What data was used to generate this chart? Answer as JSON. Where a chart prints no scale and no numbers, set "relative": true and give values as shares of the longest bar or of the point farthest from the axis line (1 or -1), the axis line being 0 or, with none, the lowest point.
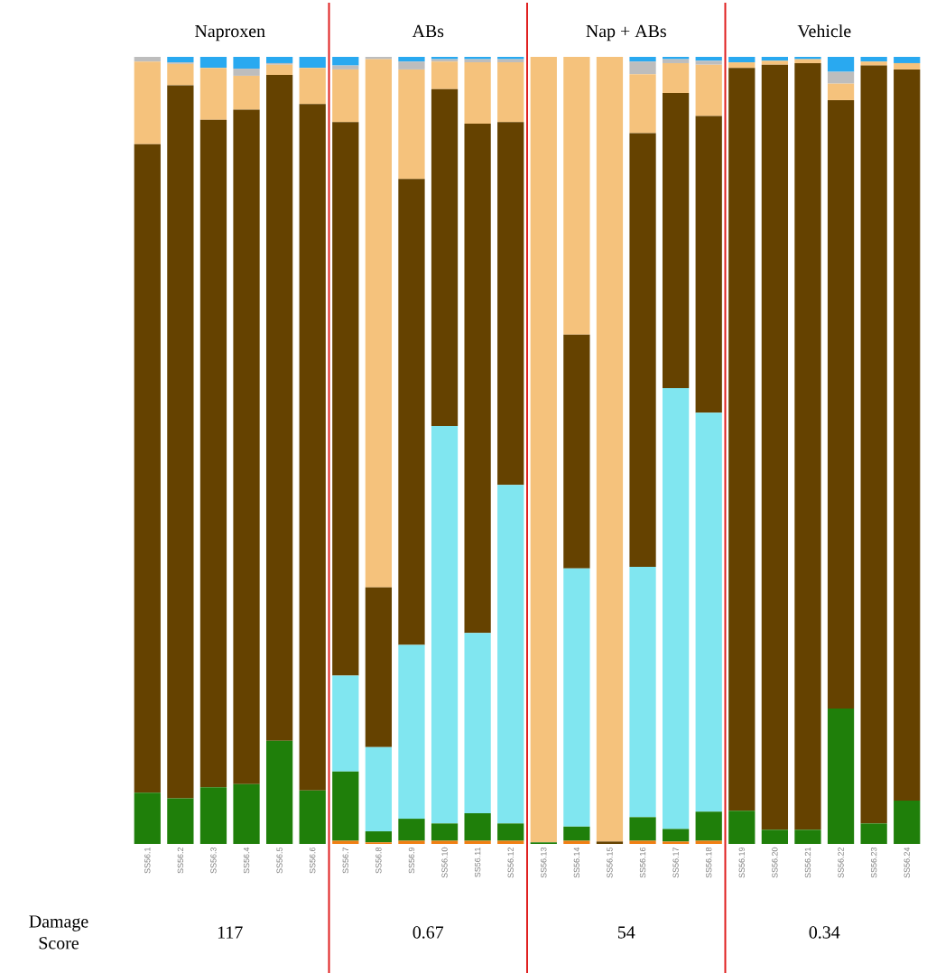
{
  "chart_data": {
    "type": "bar",
    "stacked": true,
    "relative": true,
    "categories": [
      "SS56.1",
      "SS56.2",
      "SS56.3",
      "SS56.4",
      "SS56.5",
      "SS56.6",
      "SS56.7",
      "SS56.8",
      "SS56.9",
      "SS56.10",
      "SS56.11",
      "SS56.12",
      "SS56.13",
      "SS56.14",
      "SS56.15",
      "SS56.16",
      "SS56.17",
      "SS56.18",
      "SS56.19",
      "SS56.20",
      "SS56.21",
      "SS56.22",
      "SS56.23",
      "SS56.24"
    ],
    "series": [
      {
        "color": "#f07f13",
        "values": [
          0,
          0,
          0,
          0,
          0,
          0,
          0.004,
          0.002,
          0.004,
          0.004,
          0.004,
          0.004,
          0,
          0.004,
          0,
          0.004,
          0.003,
          0.004,
          0,
          0,
          0,
          0,
          0,
          0
        ]
      },
      {
        "color": "#1f7f0a",
        "values": [
          0.065,
          0.058,
          0.072,
          0.076,
          0.131,
          0.068,
          0.088,
          0.014,
          0.028,
          0.022,
          0.035,
          0.022,
          0.002,
          0.018,
          0,
          0.03,
          0.016,
          0.037,
          0.042,
          0.018,
          0.018,
          0.172,
          0.026,
          0.055
        ]
      },
      {
        "color": "#80e6f0",
        "values": [
          0,
          0,
          0,
          0,
          0,
          0,
          0.122,
          0.107,
          0.221,
          0.505,
          0.229,
          0.43,
          0,
          0.328,
          0,
          0.318,
          0.56,
          0.507,
          0,
          0,
          0,
          0,
          0,
          0
        ]
      },
      {
        "color": "#654200",
        "values": [
          0.824,
          0.906,
          0.848,
          0.857,
          0.846,
          0.872,
          0.703,
          0.203,
          0.592,
          0.428,
          0.647,
          0.461,
          0,
          0.297,
          0.003,
          0.551,
          0.375,
          0.377,
          0.944,
          0.972,
          0.974,
          0.773,
          0.963,
          0.929
        ]
      },
      {
        "color": "#f5c27c",
        "values": [
          0.105,
          0.027,
          0.066,
          0.043,
          0.013,
          0.046,
          0.067,
          0.671,
          0.139,
          0.035,
          0.078,
          0.076,
          0.998,
          0.353,
          0.997,
          0.075,
          0.038,
          0.065,
          0.007,
          0.005,
          0.005,
          0.021,
          0.005,
          0.008
        ]
      },
      {
        "color": "#bdbdbd",
        "values": [
          0.006,
          0.002,
          0,
          0.009,
          0.002,
          0,
          0.005,
          0.003,
          0.01,
          0.003,
          0.004,
          0.004,
          0,
          0,
          0,
          0.016,
          0.005,
          0.005,
          0,
          0,
          0,
          0.015,
          0,
          0
        ]
      },
      {
        "color": "#29a9f0",
        "values": [
          0,
          0.007,
          0.014,
          0.015,
          0.008,
          0.014,
          0.011,
          0,
          0.006,
          0.003,
          0.003,
          0.003,
          0,
          0,
          0,
          0.006,
          0.003,
          0.005,
          0.007,
          0.005,
          0.003,
          0.019,
          0.006,
          0.008
        ]
      }
    ],
    "annotations": [
      "Naproxen",
      "ABs",
      "Nap + ABs",
      "Vehicle",
      "Damage Score",
      "117",
      "0.67",
      "54",
      "0.34"
    ]
  }
}
